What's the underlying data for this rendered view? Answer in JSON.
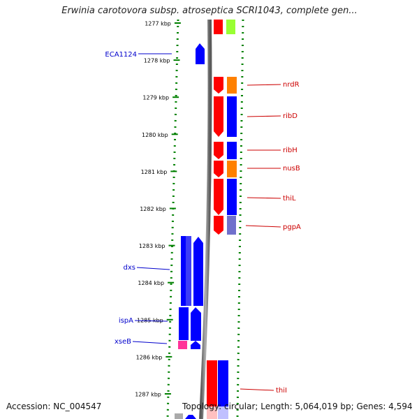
{
  "title": "Erwinia carotovora subsp. atroseptica SCRI1043, complete gen...",
  "footer": {
    "accession": "Accession: NC_004547",
    "topology": "Topology: circular; Length: 5,064,019 bp; Genes: 4,594"
  },
  "colors": {
    "red": "#ff0000",
    "blue": "#0000ff",
    "orange": "#ff8000",
    "lightgreen": "#99ff33",
    "pink": "#ff3399",
    "lavender": "#7070cc",
    "tick": "#008000",
    "label_left": "#0000cc",
    "label_right": "#cc0000"
  },
  "scale": {
    "labels": [
      "1277 kbp",
      "1278 kbp",
      "1279 kbp",
      "1280 kbp",
      "1281 kbp",
      "1282 kbp",
      "1283 kbp",
      "1284 kbp",
      "1285 kbp",
      "1286 kbp",
      "1287 kbp"
    ]
  },
  "gene_labels_left": [
    "ECA1124",
    "dxs",
    "ispA",
    "xseB"
  ],
  "gene_labels_right": [
    "nrdR",
    "ribD",
    "ribH",
    "nusB",
    "thiL",
    "pgpA",
    "thiI"
  ]
}
